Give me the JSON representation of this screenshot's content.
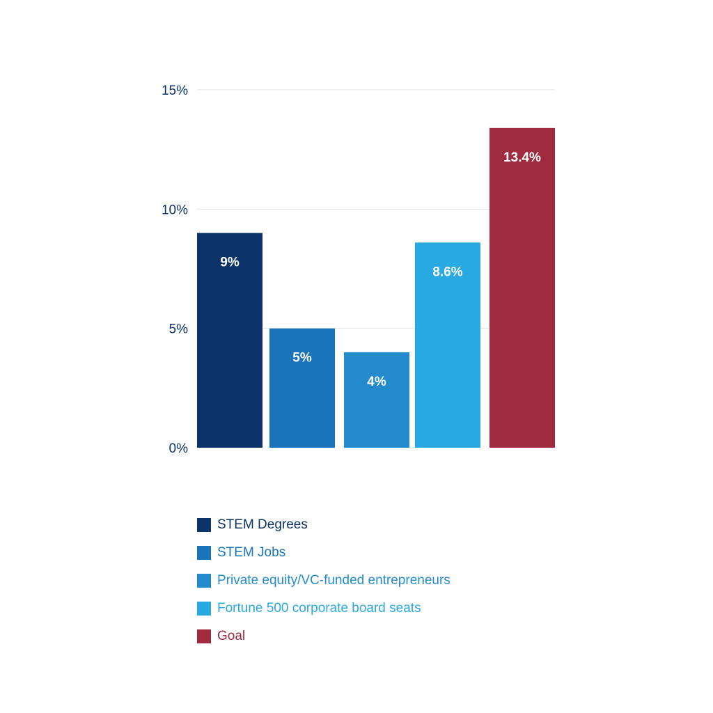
{
  "chart_data": {
    "type": "bar",
    "title": "",
    "xlabel": "",
    "ylabel": "",
    "ylim": [
      0,
      15
    ],
    "yticks": [
      0,
      5,
      10,
      15
    ],
    "ytick_labels": [
      "0%",
      "5%",
      "10%",
      "15%"
    ],
    "grid": true,
    "legend_position": "bottom-left",
    "series": [
      {
        "name": "STEM Degrees",
        "value": 9,
        "label": "9%",
        "color": "#0b3369",
        "legend_color": "#0b3369"
      },
      {
        "name": "STEM Jobs",
        "value": 5,
        "label": "5%",
        "color": "#1a74bb",
        "legend_color": "#1a74bb"
      },
      {
        "name": "Private equity/VC-funded entrepreneurs",
        "value": 4,
        "label": "4%",
        "color": "#238bcd",
        "legend_color": "#238bcd"
      },
      {
        "name": "Fortune 500 corporate board seats",
        "value": 8.6,
        "label": "8.6%",
        "color": "#29a9e1",
        "legend_color": "#29a9e1"
      },
      {
        "name": "Goal",
        "value": 13.4,
        "label": "13.4%",
        "color": "#a02a3e",
        "legend_color": "#a02a3e"
      }
    ],
    "axis_label_color": "#0b3369",
    "gridline_color": "#e3e6ea",
    "data_label_color": "#ffffff"
  }
}
